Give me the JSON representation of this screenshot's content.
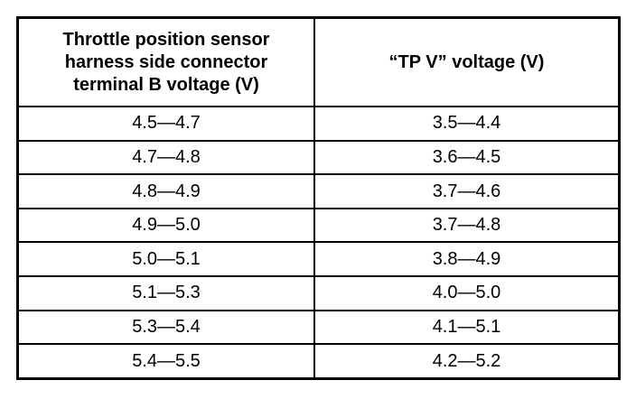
{
  "table": {
    "header": [
      [
        "Throttle position sensor",
        "harness side connector",
        "terminal B voltage (V)"
      ],
      [
        "“TP V” voltage (V)"
      ]
    ],
    "rows": [
      [
        "4.5—4.7",
        "3.5—4.4"
      ],
      [
        "4.7—4.8",
        "3.6—4.5"
      ],
      [
        "4.8—4.9",
        "3.7—4.6"
      ],
      [
        "4.9—5.0",
        "3.7—4.8"
      ],
      [
        "5.0—5.1",
        "3.8—4.9"
      ],
      [
        "5.1—5.3",
        "4.0—5.0"
      ],
      [
        "5.3—5.4",
        "4.1—5.1"
      ],
      [
        "5.4—5.5",
        "4.2—5.2"
      ]
    ]
  }
}
